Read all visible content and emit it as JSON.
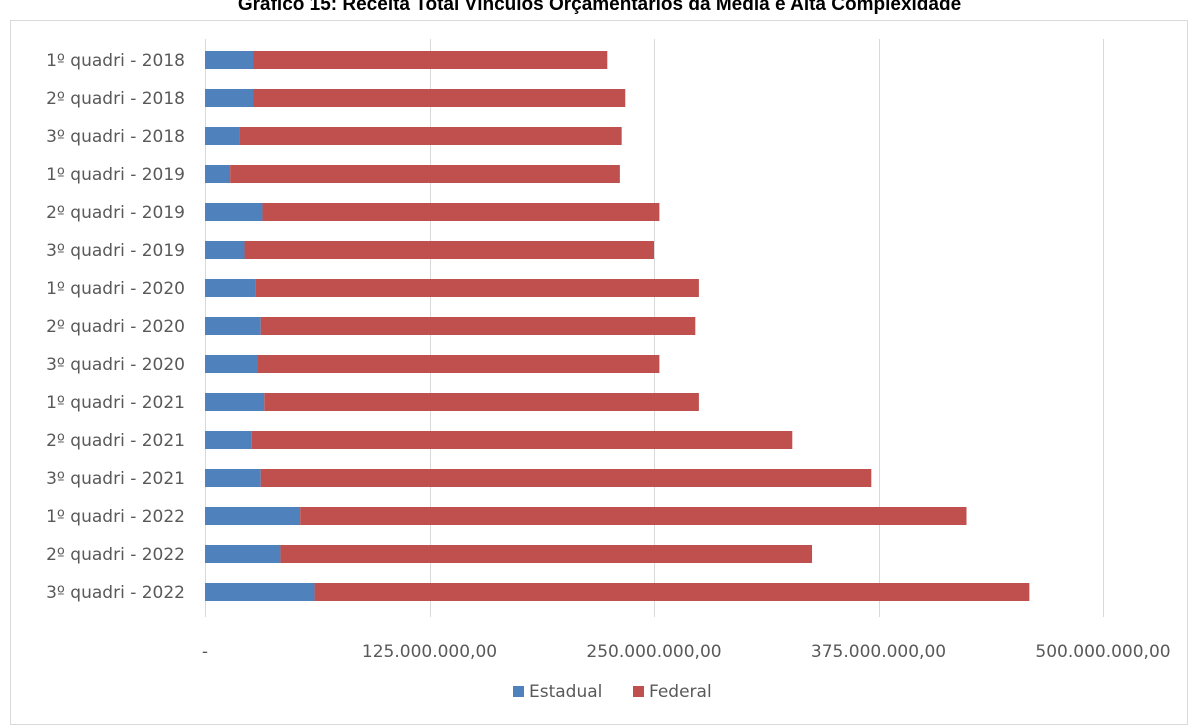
{
  "chart_data": {
    "type": "bar",
    "orientation": "horizontal",
    "stacked": true,
    "title": "Gráfico 15: Receita Total Vínculos Orçamentários da Média e Alta Complexidade",
    "categories": [
      "1º quadri - 2018",
      "2º quadri - 2018",
      "3º quadri - 2018",
      "1º quadri - 2019",
      "2º quadri - 2019",
      "3º quadri - 2019",
      "1º quadri - 2020",
      "2º quadri - 2020",
      "3º quadri - 2020",
      "1º quadri - 2021",
      "2º quadri - 2021",
      "3º quadri - 2021",
      "1º quadri - 2022",
      "2º quadri - 2022",
      "3º quadri - 2022"
    ],
    "series": [
      {
        "name": "Estadual",
        "color": "#4f81bd",
        "values": [
          27000000,
          27000000,
          19000000,
          14000000,
          32000000,
          22000000,
          28000000,
          31000000,
          29000000,
          33000000,
          26000000,
          31000000,
          53000000,
          42000000,
          61000000
        ]
      },
      {
        "name": "Federal",
        "color": "#c0504d",
        "values": [
          197000000,
          207000000,
          213000000,
          217000000,
          221000000,
          228000000,
          247000000,
          242000000,
          224000000,
          242000000,
          301000000,
          340000000,
          371000000,
          296000000,
          398000000
        ]
      }
    ],
    "xlim": [
      0,
      500000000
    ],
    "x_ticks": [
      0,
      125000000,
      250000000,
      375000000,
      500000000
    ],
    "x_tick_labels": [
      "-",
      "125.000.000,00",
      "250.000.000,00",
      "375.000.000,00",
      "500.000.000,00"
    ],
    "grid": true,
    "legend": "bottom"
  }
}
